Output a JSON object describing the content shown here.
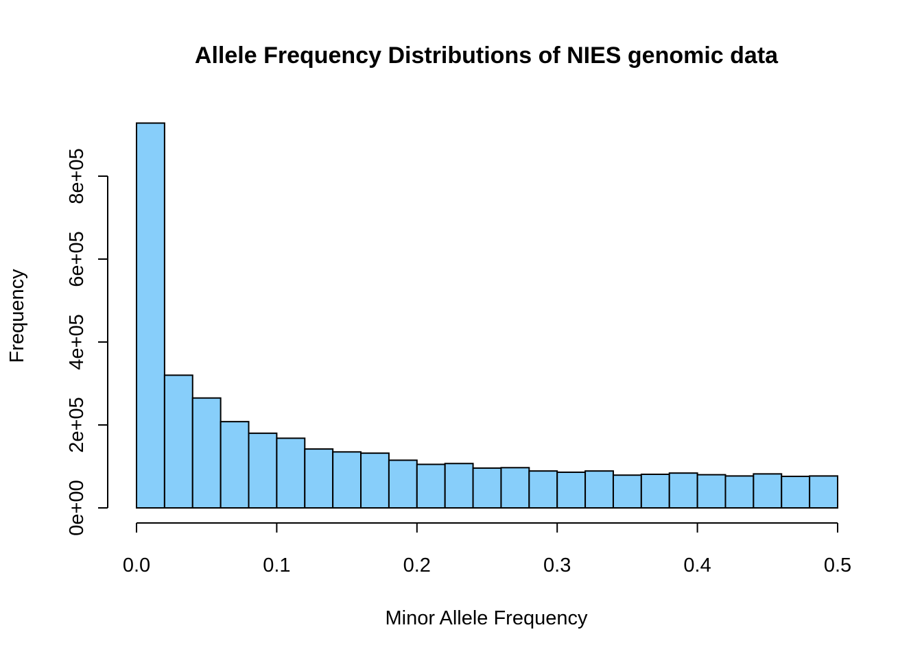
{
  "chart_data": {
    "type": "bar",
    "title": "Allele Frequency Distributions of NIES genomic data",
    "xlabel": "Minor Allele Frequency",
    "ylabel": "Frequency",
    "bar_color": "#87CEFA",
    "xlim": [
      0,
      0.5
    ],
    "ylim": [
      0,
      800000
    ],
    "x_ticks": [
      0,
      0.1,
      0.2,
      0.3,
      0.4,
      0.5
    ],
    "x_tick_labels": [
      "0.0",
      "0.1",
      "0.2",
      "0.3",
      "0.4",
      "0.5"
    ],
    "y_ticks": [
      0,
      200000,
      400000,
      600000,
      800000
    ],
    "y_tick_labels": [
      "0e+00",
      "2e+05",
      "4e+05",
      "6e+05",
      "8e+05"
    ],
    "bin_edges": [
      0,
      0.02,
      0.04,
      0.06,
      0.08,
      0.1,
      0.12,
      0.14,
      0.16,
      0.18,
      0.2,
      0.22,
      0.24,
      0.26,
      0.28,
      0.3,
      0.32,
      0.34,
      0.36,
      0.38,
      0.4,
      0.42,
      0.44,
      0.46,
      0.48,
      0.5
    ],
    "values": [
      928000,
      320000,
      265000,
      208000,
      180000,
      168000,
      142000,
      135000,
      132000,
      115000,
      105000,
      107000,
      96000,
      97000,
      89000,
      86000,
      89000,
      79000,
      81000,
      84000,
      80000,
      77000,
      82000,
      76000,
      77000
    ]
  }
}
